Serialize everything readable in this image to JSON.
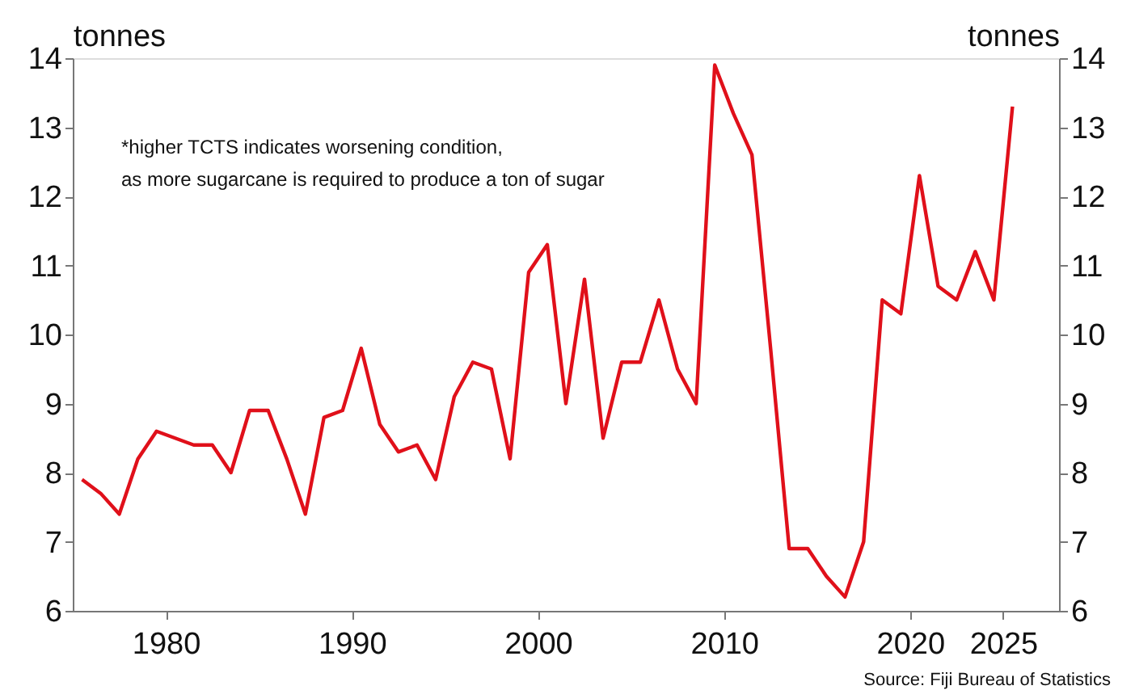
{
  "chart_data": {
    "type": "line",
    "ylabel": "tonnes",
    "y2label": "tonnes",
    "x": [
      1975.5,
      1976.5,
      1977.5,
      1978.5,
      1979.5,
      1980.5,
      1981.5,
      1982.5,
      1983.5,
      1984.5,
      1985.5,
      1986.5,
      1987.5,
      1988.5,
      1989.5,
      1990.5,
      1991.5,
      1992.5,
      1993.5,
      1994.5,
      1995.5,
      1996.5,
      1997.5,
      1998.5,
      1999.5,
      2000.5,
      2001.5,
      2002.5,
      2003.5,
      2004.5,
      2005.5,
      2006.5,
      2007.5,
      2008.5,
      2009.5,
      2010.5,
      2011.5,
      2012.5,
      2013.5,
      2014.5,
      2015.5,
      2016.5,
      2017.5,
      2018.5,
      2019.5,
      2020.5,
      2021.5,
      2022.5,
      2023.5,
      2024.5,
      2025.5
    ],
    "series": [
      {
        "color": "#e0101a",
        "values": [
          7.9,
          7.7,
          7.4,
          8.2,
          8.6,
          8.5,
          8.4,
          8.4,
          8.0,
          8.9,
          8.9,
          8.2,
          7.4,
          8.8,
          8.9,
          9.8,
          8.7,
          8.3,
          8.4,
          7.9,
          9.1,
          9.6,
          9.5,
          8.2,
          10.9,
          11.3,
          9.0,
          10.8,
          8.5,
          9.6,
          9.6,
          10.5,
          9.5,
          9.0,
          13.9,
          13.2,
          12.6,
          9.8,
          6.9,
          6.9,
          6.5,
          6.2,
          7.0,
          10.5,
          10.3,
          12.3,
          10.7,
          10.5,
          11.2,
          10.5,
          13.3
        ]
      }
    ],
    "xlim": [
      1975,
      2028
    ],
    "xticks": [
      1980,
      1990,
      2000,
      2010,
      2020,
      2025
    ],
    "ylim": [
      6,
      14
    ],
    "yticks": [
      6,
      7,
      8,
      9,
      10,
      11,
      12,
      13,
      14
    ],
    "y2lim": [
      6,
      14
    ],
    "y2ticks": [
      6,
      7,
      8,
      9,
      10,
      11,
      12,
      13,
      14
    ],
    "grid": false,
    "marker": "none",
    "line_style": "solid",
    "annotations": [
      "*higher TCTS indicates worsening condition,\nas more sugarcane is required to produce a ton of sugar",
      "Source: Fiji Bureau of Statistics"
    ]
  }
}
